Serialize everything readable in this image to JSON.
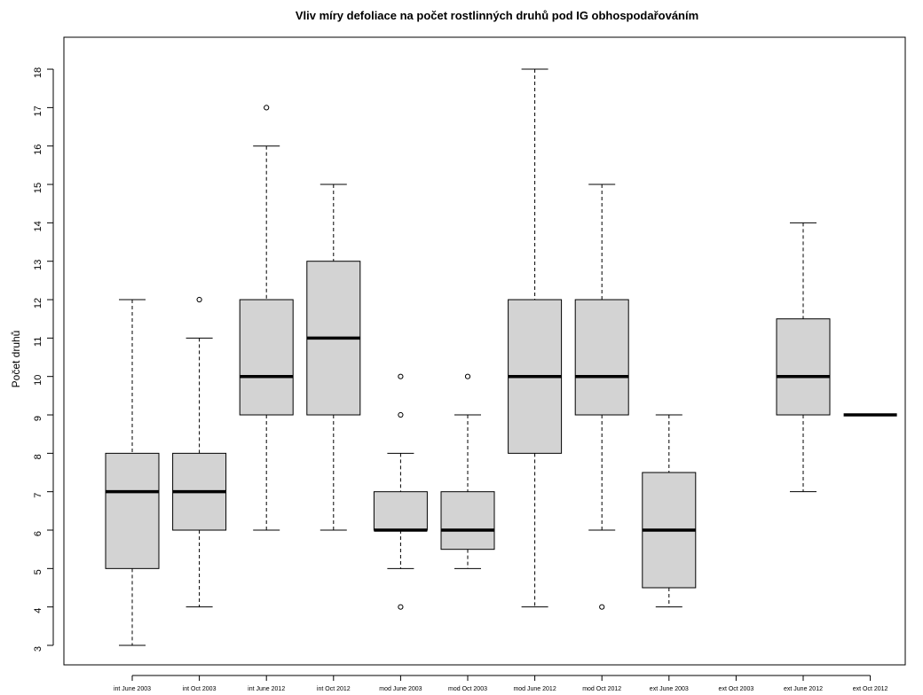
{
  "chart_data": {
    "type": "boxplot",
    "title": "Vliv míry defoliace na počet rostlinných druhů pod IG obhospodařováním",
    "ylabel": "Počet druhů",
    "xlabel": "",
    "ylim": [
      2.5,
      18.5
    ],
    "yticks": [
      3,
      4,
      5,
      6,
      7,
      8,
      9,
      10,
      11,
      12,
      13,
      14,
      15,
      16,
      17,
      18
    ],
    "grid": false,
    "box_fill": "#d3d3d3",
    "categories": [
      "int June 2003",
      "int Oct 2003",
      "int June 2012",
      "int Oct 2012",
      "mod June 2003",
      "mod Oct 2003",
      "mod June 2012",
      "mod Oct 2012",
      "ext June 2003",
      "ext Oct 2003",
      "ext June 2012",
      "ext Oct 2012"
    ],
    "boxes": [
      {
        "category": "int June 2003",
        "min": 3,
        "q1": 5,
        "median": 7,
        "q3": 8,
        "max": 12,
        "outliers": []
      },
      {
        "category": "int Oct 2003",
        "min": 4,
        "q1": 6,
        "median": 7,
        "q3": 8,
        "max": 11,
        "outliers": [
          12
        ]
      },
      {
        "category": "int June 2012",
        "min": 6,
        "q1": 9,
        "median": 10,
        "q3": 12,
        "max": 16,
        "outliers": [
          17
        ]
      },
      {
        "category": "int Oct 2012",
        "min": 6,
        "q1": 9,
        "median": 11,
        "q3": 13,
        "max": 15,
        "outliers": []
      },
      {
        "category": "mod June 2003",
        "min": 5,
        "q1": 6,
        "median": 6,
        "q3": 7,
        "max": 8,
        "outliers": [
          4,
          9,
          10
        ]
      },
      {
        "category": "mod Oct 2003",
        "min": 5,
        "q1": 5.5,
        "median": 6,
        "q3": 7,
        "max": 9,
        "outliers": [
          10
        ]
      },
      {
        "category": "mod June 2012",
        "min": 4,
        "q1": 8,
        "median": 10,
        "q3": 12,
        "max": 18,
        "outliers": []
      },
      {
        "category": "mod Oct 2012",
        "min": 6,
        "q1": 9,
        "median": 10,
        "q3": 12,
        "max": 15,
        "outliers": [
          4
        ]
      },
      {
        "category": "ext June 2003",
        "min": 4,
        "q1": 4.5,
        "median": 6,
        "q3": 7.5,
        "max": 9,
        "outliers": []
      },
      {
        "category": "ext Oct 2003",
        "empty": true
      },
      {
        "category": "ext June 2012",
        "min": 7,
        "q1": 9,
        "median": 10,
        "q3": 11.5,
        "max": 14,
        "outliers": []
      },
      {
        "category": "ext Oct 2012",
        "min": 9,
        "q1": 9,
        "median": 9,
        "q3": 9,
        "max": 9,
        "outliers": []
      }
    ]
  }
}
